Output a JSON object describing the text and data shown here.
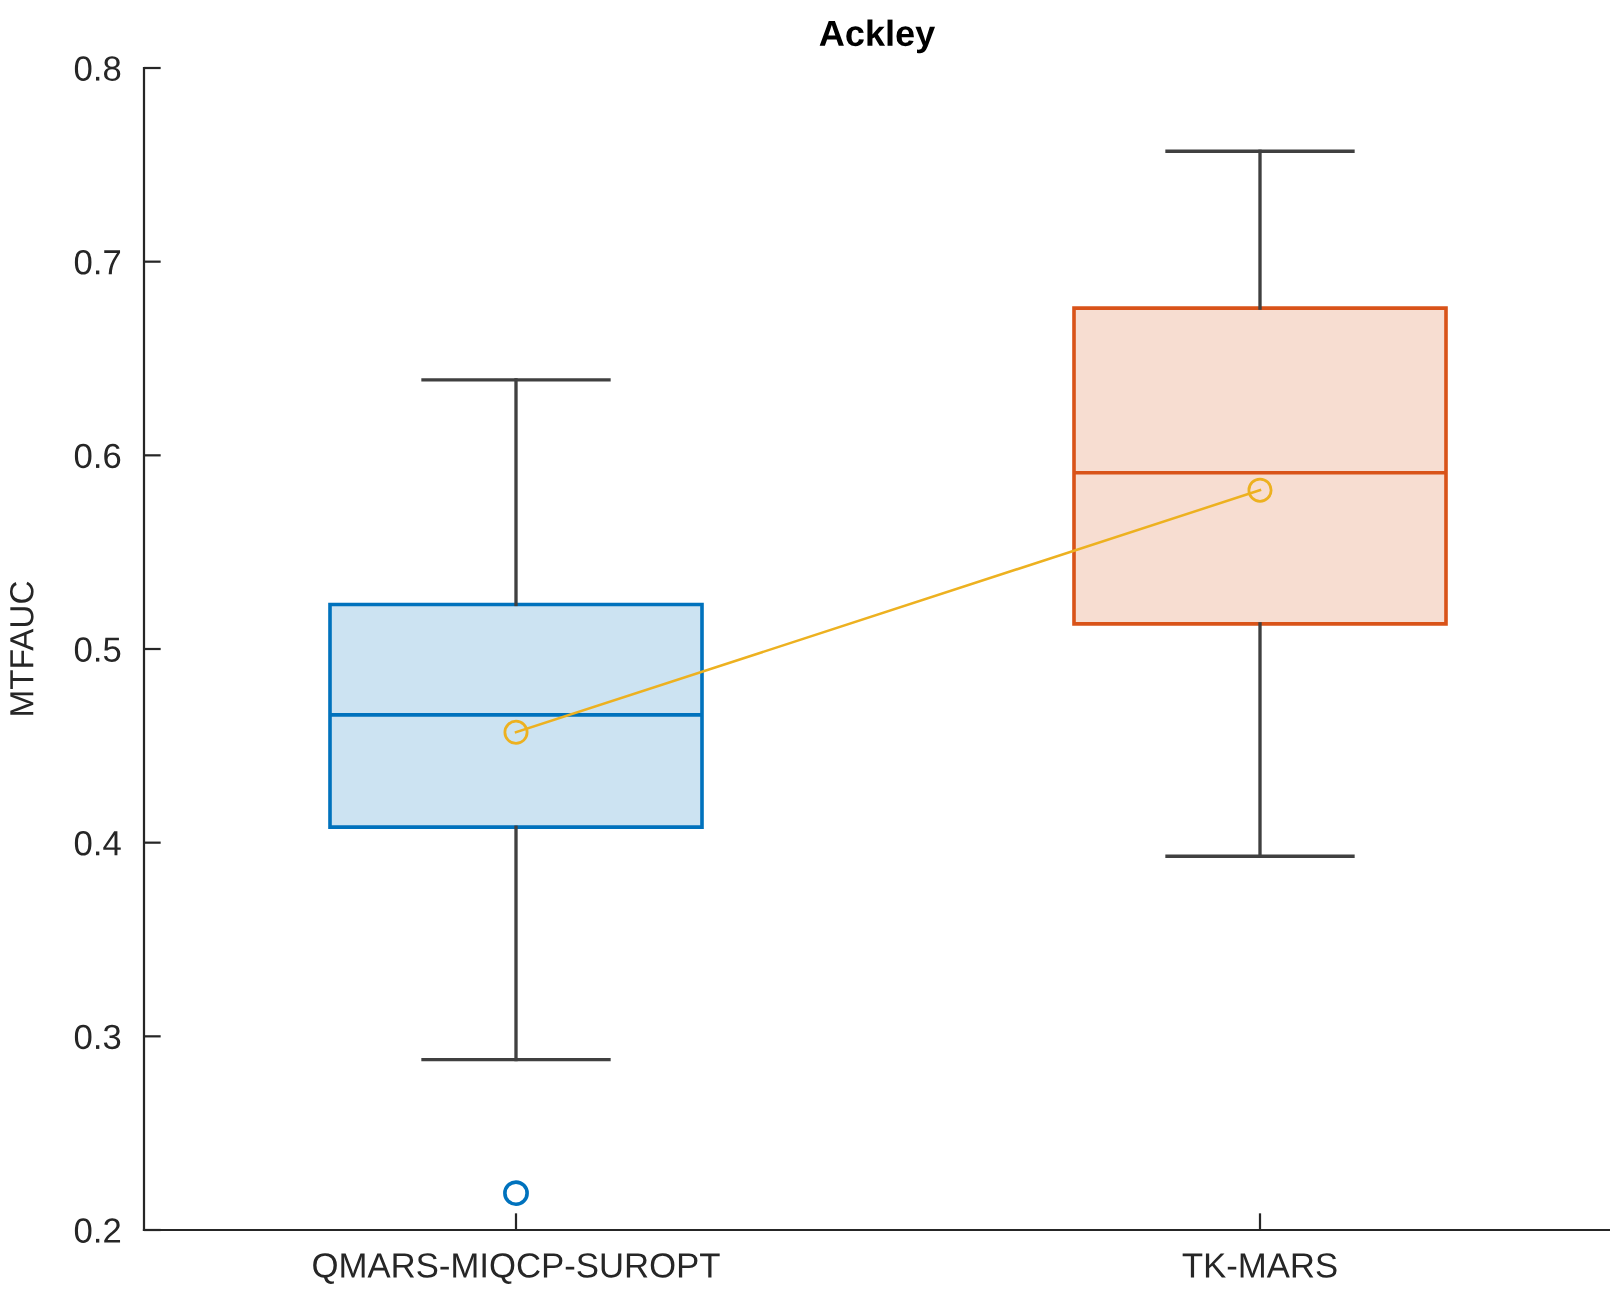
{
  "chart_data": {
    "type": "box",
    "title": "Ackley",
    "ylabel": "MTFAUC",
    "categories": [
      "QMARS-MIQCP-SUROPT",
      "TK-MARS"
    ],
    "series": [
      {
        "colors": [
          "#0072bd",
          "#d95319"
        ],
        "boxes": [
          {
            "low": 0.288,
            "q1": 0.408,
            "median": 0.466,
            "q3": 0.523,
            "high": 0.639,
            "outliers": [
              0.219
            ]
          },
          {
            "low": 0.393,
            "q1": 0.513,
            "median": 0.591,
            "q3": 0.676,
            "high": 0.757
          }
        ]
      },
      {
        "type": "line",
        "color": "#edb120",
        "values": [
          0.457,
          0.582
        ],
        "marker": "circle"
      }
    ],
    "ylim": [
      0.2,
      0.8
    ],
    "yticks": [
      0.2,
      0.3,
      0.4,
      0.5,
      0.6,
      0.7,
      0.8
    ]
  }
}
